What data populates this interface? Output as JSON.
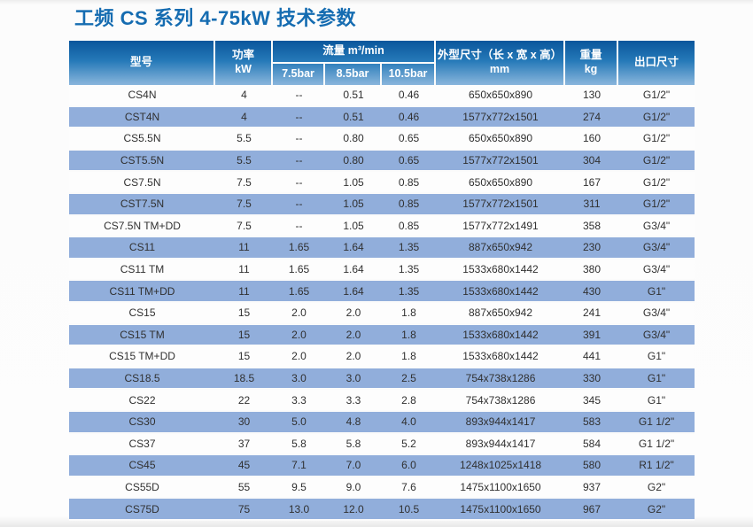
{
  "page": {
    "title": "工频 CS 系列 4-75kW 技术参数"
  },
  "colors": {
    "title_blue": "#156cb1",
    "header_gradient_top": "#0a569c",
    "header_gradient_bottom": "#8ab6dc",
    "row_stripe_blue": "#91aedb",
    "header_text": "#ffffff",
    "body_text": "#303030"
  },
  "table": {
    "headers": {
      "model": "型号",
      "power_line1": "功率",
      "power_line2": "kW",
      "flow_group": "流量 m³/min",
      "flow_cols": [
        "7.5bar",
        "8.5bar",
        "10.5bar"
      ],
      "dims_line1": "外型尺寸（长 x 宽 x 高）",
      "dims_line2": "mm",
      "weight_line1": "重量",
      "weight_line2": "kg",
      "outlet": "出口尺寸"
    },
    "rows": [
      [
        "CS4N",
        "4",
        "--",
        "0.51",
        "0.46",
        "650x650x890",
        "130",
        "G1/2\""
      ],
      [
        "CST4N",
        "4",
        "--",
        "0.51",
        "0.46",
        "1577x772x1501",
        "274",
        "G1/2\""
      ],
      [
        "CS5.5N",
        "5.5",
        "--",
        "0.80",
        "0.65",
        "650x650x890",
        "160",
        "G1/2\""
      ],
      [
        "CST5.5N",
        "5.5",
        "--",
        "0.80",
        "0.65",
        "1577x772x1501",
        "304",
        "G1/2\""
      ],
      [
        "CS7.5N",
        "7.5",
        "--",
        "1.05",
        "0.85",
        "650x650x890",
        "167",
        "G1/2\""
      ],
      [
        "CST7.5N",
        "7.5",
        "--",
        "1.05",
        "0.85",
        "1577x772x1501",
        "311",
        "G1/2\""
      ],
      [
        "CS7.5N TM+DD",
        "7.5",
        "--",
        "1.05",
        "0.85",
        "1577x772x1491",
        "358",
        "G3/4\""
      ],
      [
        "CS11",
        "11",
        "1.65",
        "1.64",
        "1.35",
        "887x650x942",
        "230",
        "G3/4\""
      ],
      [
        "CS11 TM",
        "11",
        "1.65",
        "1.64",
        "1.35",
        "1533x680x1442",
        "380",
        "G3/4\""
      ],
      [
        "CS11 TM+DD",
        "11",
        "1.65",
        "1.64",
        "1.35",
        "1533x680x1442",
        "430",
        "G1\""
      ],
      [
        "CS15",
        "15",
        "2.0",
        "2.0",
        "1.8",
        "887x650x942",
        "241",
        "G3/4\""
      ],
      [
        "CS15 TM",
        "15",
        "2.0",
        "2.0",
        "1.8",
        "1533x680x1442",
        "391",
        "G3/4\""
      ],
      [
        "CS15 TM+DD",
        "15",
        "2.0",
        "2.0",
        "1.8",
        "1533x680x1442",
        "441",
        "G1\""
      ],
      [
        "CS18.5",
        "18.5",
        "3.0",
        "3.0",
        "2.5",
        "754x738x1286",
        "330",
        "G1\""
      ],
      [
        "CS22",
        "22",
        "3.3",
        "3.3",
        "2.8",
        "754x738x1286",
        "345",
        "G1\""
      ],
      [
        "CS30",
        "30",
        "5.0",
        "4.8",
        "4.0",
        "893x944x1417",
        "583",
        "G1 1/2\""
      ],
      [
        "CS37",
        "37",
        "5.8",
        "5.8",
        "5.2",
        "893x944x1417",
        "584",
        "G1 1/2\""
      ],
      [
        "CS45",
        "45",
        "7.1",
        "7.0",
        "6.0",
        "1248x1025x1418",
        "580",
        "R1 1/2\""
      ],
      [
        "CS55D",
        "55",
        "9.5",
        "9.0",
        "7.6",
        "1475x1100x1650",
        "937",
        "G2\""
      ],
      [
        "CS75D",
        "75",
        "13.0",
        "12.0",
        "10.5",
        "1475x1100x1650",
        "967",
        "G2\""
      ]
    ]
  }
}
